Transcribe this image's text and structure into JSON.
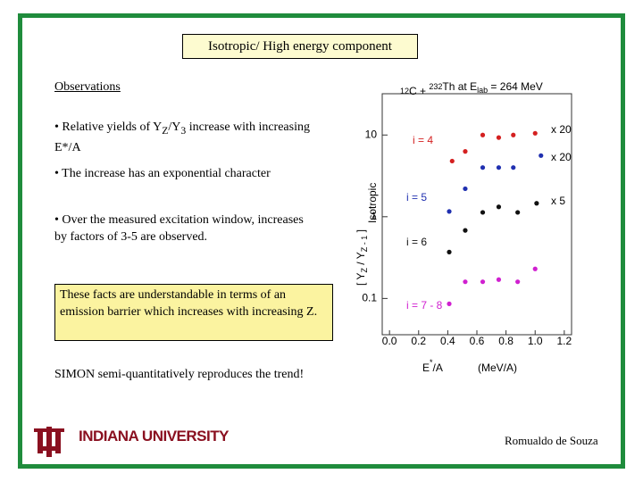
{
  "header": {
    "title": "Isotropic/ High energy component"
  },
  "observations": {
    "heading": "Observations",
    "bullets": [
      {
        "parts": [
          "• Relative yields of Y",
          "Z",
          "/Y",
          "3",
          " increase with increasing E*/A"
        ]
      },
      {
        "parts": [
          "• The increase has an exponential character"
        ]
      },
      {
        "parts": [
          "• Over the measured excitation window, increases by factors of 3-5 are observed."
        ]
      }
    ]
  },
  "callout": "These facts are understandable in terms of an emission barrier which increases with increasing Z.",
  "conclusion": "SIMON semi-quantitatively reproduces the trend!",
  "footer": {
    "logo": "INDIANA UNIVERSITY",
    "author": "Romualdo de Souza"
  },
  "figure": {
    "type": "scatter",
    "title_parts": [
      "12",
      "C + ",
      "232",
      "Th at E",
      "lab",
      " = 264 MeV"
    ],
    "y_label_parts": [
      "[ Y",
      "Z",
      " / Y",
      "Z - 1",
      " ]",
      "Isotropic"
    ],
    "x_label_parts": [
      "E",
      "*",
      "/A",
      "(MeV/A)"
    ],
    "log_y": true,
    "xlim": [
      -0.05,
      1.25
    ],
    "ylim": [
      0.036,
      32
    ],
    "xticks": [
      {
        "value": 0,
        "label": "0.0"
      },
      {
        "value": 0.2,
        "label": "0.2"
      },
      {
        "value": 0.4,
        "label": "0.4"
      },
      {
        "value": 0.6,
        "label": "0.6"
      },
      {
        "value": 0.8,
        "label": "0.8"
      },
      {
        "value": 1,
        "label": "1.0"
      },
      {
        "value": 1.2,
        "label": "1.2"
      }
    ],
    "yticks": [
      10,
      1,
      0.1
    ],
    "series": [
      {
        "name": "i = 4",
        "scale": "x 20",
        "color": "#d42020",
        "x": [
          0.43,
          0.52,
          0.64,
          0.75,
          0.85,
          1.0
        ],
        "values": [
          4.8,
          6.3,
          10,
          9.3,
          10,
          10.5
        ]
      },
      {
        "name": "i = 5",
        "scale": "x 20",
        "color": "#2030b0",
        "x": [
          0.41,
          0.52,
          0.64,
          0.75,
          0.85,
          1.04
        ],
        "values": [
          1.16,
          2.2,
          4.0,
          4.0,
          4.0,
          5.6
        ]
      },
      {
        "name": "i = 6",
        "scale": "x 5",
        "color": "#111111",
        "x": [
          0.41,
          0.52,
          0.64,
          0.75,
          0.88,
          1.01
        ],
        "values": [
          0.37,
          0.68,
          1.13,
          1.32,
          1.13,
          1.46
        ]
      },
      {
        "name": "i = 7 - 8",
        "color": "#d020d0",
        "x": [
          0.41,
          0.52,
          0.64,
          0.75,
          0.88,
          1.0
        ],
        "values": [
          0.086,
          0.16,
          0.16,
          0.17,
          0.16,
          0.23
        ]
      }
    ]
  }
}
